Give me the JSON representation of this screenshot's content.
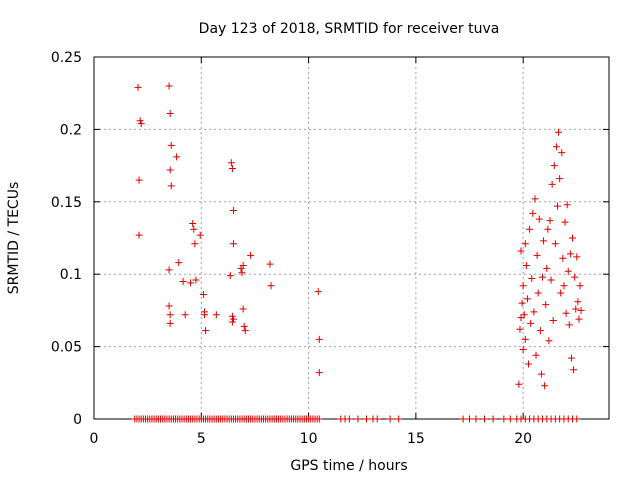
{
  "chart_data": {
    "type": "scatter",
    "title": "Day 123 of 2018, SRMTID for receiver tuva",
    "xlabel": "GPS time / hours",
    "ylabel": "SRMTID / TECUs",
    "xlim": [
      0,
      24
    ],
    "ylim": [
      0,
      0.25
    ],
    "x_ticks": [
      0,
      5,
      10,
      15,
      20
    ],
    "x_tick_labels": [
      "0",
      "5",
      "10",
      "15",
      "20"
    ],
    "y_ticks": [
      0,
      0.05,
      0.1,
      0.15,
      0.2,
      0.25
    ],
    "y_tick_labels": [
      "0",
      "0.05",
      "0.1",
      "0.15",
      "0.2",
      "0.25"
    ],
    "grid": true,
    "marker": "+",
    "color": "#dd0000",
    "series": [
      {
        "x": [
          2.05,
          2.1,
          2.1,
          2.15,
          2.2,
          3.5,
          3.55,
          3.6,
          3.55,
          3.6,
          3.85,
          3.5,
          3.5,
          3.55,
          3.55,
          3.95,
          4.15,
          4.25,
          4.5,
          4.6,
          4.65,
          4.7,
          4.75,
          4.95,
          5.1,
          5.15,
          5.15,
          5.2,
          5.7,
          6.35,
          6.4,
          6.45,
          6.5,
          6.5,
          6.45,
          6.45,
          6.5,
          6.85,
          6.9,
          6.95,
          6.95,
          7.0,
          7.05,
          7.3,
          8.2,
          8.25,
          10.45,
          10.5,
          10.5
        ],
        "y": [
          0.229,
          0.165,
          0.127,
          0.206,
          0.204,
          0.23,
          0.211,
          0.189,
          0.172,
          0.161,
          0.181,
          0.103,
          0.078,
          0.072,
          0.066,
          0.108,
          0.095,
          0.072,
          0.094,
          0.135,
          0.131,
          0.121,
          0.096,
          0.127,
          0.086,
          0.072,
          0.074,
          0.061,
          0.072,
          0.099,
          0.177,
          0.173,
          0.144,
          0.121,
          0.071,
          0.067,
          0.069,
          0.104,
          0.101,
          0.106,
          0.076,
          0.064,
          0.061,
          0.113,
          0.107,
          0.092,
          0.088,
          0.055,
          0.032
        ]
      },
      {
        "x": [
          19.8,
          19.85,
          19.9,
          19.9,
          19.95,
          20.0,
          20.0,
          20.05,
          20.1,
          20.1,
          20.15,
          20.2,
          20.25,
          20.3,
          20.35,
          20.4,
          20.45,
          20.5,
          20.55,
          20.6,
          20.65,
          20.7,
          20.75,
          20.8,
          20.85,
          20.9,
          20.95,
          21.0,
          21.05,
          21.1,
          21.15,
          21.2,
          21.25,
          21.3,
          21.35,
          21.4,
          21.45,
          21.5,
          21.55,
          21.6,
          21.65,
          21.7,
          21.75,
          21.8,
          21.85,
          21.9,
          21.95,
          22.0,
          22.05,
          22.1,
          22.15,
          22.2,
          22.25,
          22.3,
          22.35,
          22.4,
          22.45,
          22.5,
          22.55,
          22.6,
          22.65,
          22.7
        ],
        "y": [
          0.024,
          0.062,
          0.116,
          0.07,
          0.08,
          0.048,
          0.092,
          0.072,
          0.121,
          0.055,
          0.106,
          0.083,
          0.038,
          0.131,
          0.066,
          0.097,
          0.142,
          0.074,
          0.152,
          0.044,
          0.113,
          0.087,
          0.138,
          0.061,
          0.031,
          0.098,
          0.123,
          0.023,
          0.079,
          0.104,
          0.131,
          0.054,
          0.137,
          0.096,
          0.162,
          0.068,
          0.175,
          0.121,
          0.188,
          0.147,
          0.198,
          0.166,
          0.087,
          0.184,
          0.111,
          0.092,
          0.136,
          0.073,
          0.148,
          0.102,
          0.065,
          0.114,
          0.042,
          0.125,
          0.034,
          0.098,
          0.076,
          0.112,
          0.081,
          0.069,
          0.092,
          0.075
        ]
      },
      {
        "x": [
          1.9,
          2.0,
          2.1,
          2.2,
          2.3,
          2.4,
          2.5,
          2.6,
          2.7,
          2.8,
          2.9,
          3.0,
          3.1,
          3.2,
          3.3,
          3.4,
          3.5,
          3.6,
          3.7,
          3.8,
          3.9,
          4.0,
          4.1,
          4.2,
          4.3,
          4.4,
          4.5,
          4.6,
          4.7,
          4.8,
          4.9,
          5.0,
          5.1,
          5.2,
          5.3,
          5.4,
          5.5,
          5.6,
          5.7,
          5.8,
          5.9,
          6.0,
          6.1,
          6.2,
          6.3,
          6.4,
          6.5,
          6.6,
          6.7,
          6.8,
          6.9,
          7.0,
          7.1,
          7.2,
          7.3,
          7.4,
          7.5,
          7.6,
          7.7,
          7.8,
          7.9,
          8.0,
          8.1,
          8.2,
          8.3,
          8.4,
          8.5,
          8.6,
          8.7,
          8.8,
          8.9,
          9.0,
          9.1,
          9.2,
          9.3,
          9.4,
          9.5,
          9.6,
          9.7,
          9.8,
          9.9,
          10.0,
          10.1,
          10.2,
          10.3,
          10.4,
          10.5,
          11.5,
          11.7,
          11.9,
          12.3,
          12.7,
          13.0,
          13.2,
          13.8,
          14.2,
          17.2,
          17.5,
          17.8,
          18.2,
          18.6,
          19.1,
          19.4,
          19.7,
          19.9,
          20.1,
          20.3,
          20.5,
          20.7,
          20.9,
          21.1,
          21.3,
          21.5,
          21.7,
          21.9,
          22.1,
          22.3,
          22.5
        ],
        "y": [
          0,
          0,
          0,
          0,
          0,
          0,
          0,
          0,
          0,
          0,
          0,
          0,
          0,
          0,
          0,
          0,
          0,
          0,
          0,
          0,
          0,
          0,
          0,
          0,
          0,
          0,
          0,
          0,
          0,
          0,
          0,
          0,
          0,
          0,
          0,
          0,
          0,
          0,
          0,
          0,
          0,
          0,
          0,
          0,
          0,
          0,
          0,
          0,
          0,
          0,
          0,
          0,
          0,
          0,
          0,
          0,
          0,
          0,
          0,
          0,
          0,
          0,
          0,
          0,
          0,
          0,
          0,
          0,
          0,
          0,
          0,
          0,
          0,
          0,
          0,
          0,
          0,
          0,
          0,
          0,
          0,
          0,
          0,
          0,
          0,
          0,
          0,
          0,
          0,
          0,
          0,
          0,
          0,
          0,
          0,
          0,
          0,
          0,
          0,
          0,
          0,
          0,
          0,
          0,
          0,
          0,
          0,
          0,
          0,
          0,
          0,
          0,
          0,
          0,
          0,
          0,
          0,
          0
        ]
      }
    ]
  }
}
